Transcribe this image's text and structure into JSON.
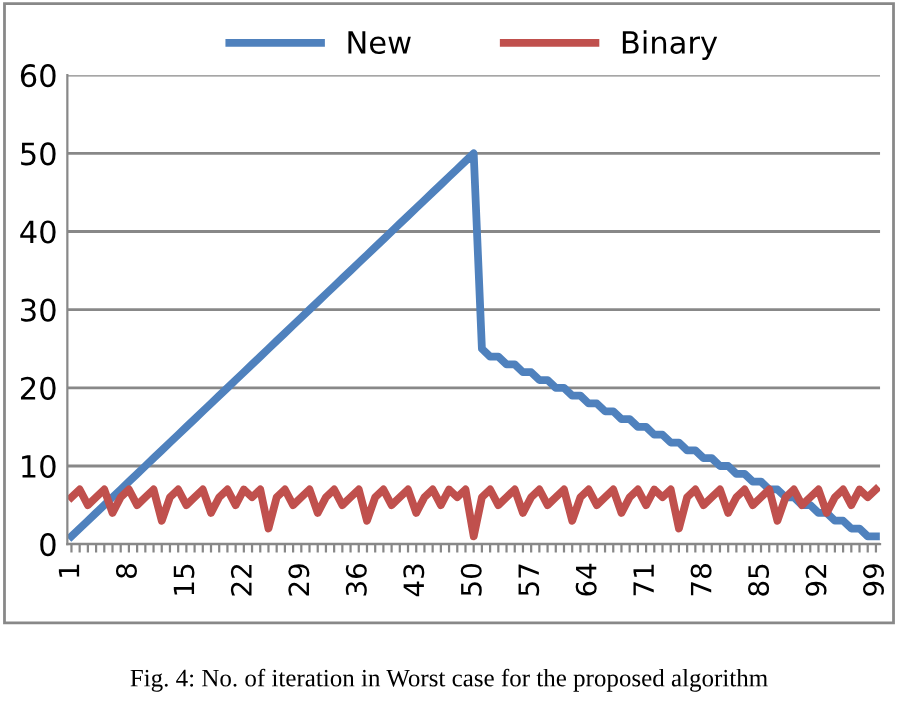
{
  "chart_data": {
    "type": "line",
    "categories": [
      "1",
      null,
      null,
      null,
      null,
      null,
      null,
      "8",
      null,
      null,
      null,
      null,
      null,
      null,
      "15",
      null,
      null,
      null,
      null,
      null,
      null,
      "22",
      null,
      null,
      null,
      null,
      null,
      null,
      "29",
      null,
      null,
      null,
      null,
      null,
      null,
      "36",
      null,
      null,
      null,
      null,
      null,
      null,
      "43",
      null,
      null,
      null,
      null,
      null,
      null,
      "50",
      null,
      null,
      null,
      null,
      null,
      null,
      "57",
      null,
      null,
      null,
      null,
      null,
      null,
      "64",
      null,
      null,
      null,
      null,
      null,
      null,
      "71",
      null,
      null,
      null,
      null,
      null,
      null,
      "78",
      null,
      null,
      null,
      null,
      null,
      null,
      "85",
      null,
      null,
      null,
      null,
      null,
      null,
      "92",
      null,
      null,
      null,
      null,
      null,
      null,
      "99"
    ],
    "series": [
      {
        "name": "New",
        "color": "#4f81bd",
        "values": [
          1,
          2,
          3,
          4,
          5,
          6,
          7,
          8,
          9,
          10,
          11,
          12,
          13,
          14,
          15,
          16,
          17,
          18,
          19,
          20,
          21,
          22,
          23,
          24,
          25,
          26,
          27,
          28,
          29,
          30,
          31,
          32,
          33,
          34,
          35,
          36,
          37,
          38,
          39,
          40,
          41,
          42,
          43,
          44,
          45,
          46,
          47,
          48,
          49,
          50,
          25,
          24,
          24,
          23,
          23,
          22,
          22,
          21,
          21,
          20,
          20,
          19,
          19,
          18,
          18,
          17,
          17,
          16,
          16,
          15,
          15,
          14,
          14,
          13,
          13,
          12,
          12,
          11,
          11,
          10,
          10,
          9,
          9,
          8,
          8,
          7,
          7,
          6,
          6,
          5,
          5,
          4,
          4,
          3,
          3,
          2,
          2,
          1,
          1
        ]
      },
      {
        "name": "Binary",
        "color": "#c0504d",
        "values": [
          6,
          7,
          5,
          6,
          7,
          4,
          6,
          7,
          5,
          6,
          7,
          3,
          6,
          7,
          5,
          6,
          7,
          4,
          6,
          7,
          5,
          7,
          6,
          7,
          2,
          6,
          7,
          5,
          6,
          7,
          4,
          6,
          7,
          5,
          6,
          7,
          3,
          6,
          7,
          5,
          6,
          7,
          4,
          6,
          7,
          5,
          7,
          6,
          7,
          1,
          6,
          7,
          5,
          6,
          7,
          4,
          6,
          7,
          5,
          6,
          7,
          3,
          6,
          7,
          5,
          6,
          7,
          4,
          6,
          7,
          5,
          7,
          6,
          7,
          2,
          6,
          7,
          5,
          6,
          7,
          4,
          6,
          7,
          5,
          6,
          7,
          3,
          6,
          7,
          5,
          6,
          7,
          4,
          6,
          7,
          5,
          7,
          6,
          7
        ]
      }
    ],
    "ylim": [
      0,
      60
    ],
    "yticks": [
      0,
      10,
      20,
      30,
      40,
      50,
      60
    ],
    "grid": "y",
    "legend": "top",
    "marker": "none",
    "line_style": "solid",
    "annotations": [
      "Fig. 4: No. of iteration in Worst case for the proposed algorithm"
    ]
  }
}
